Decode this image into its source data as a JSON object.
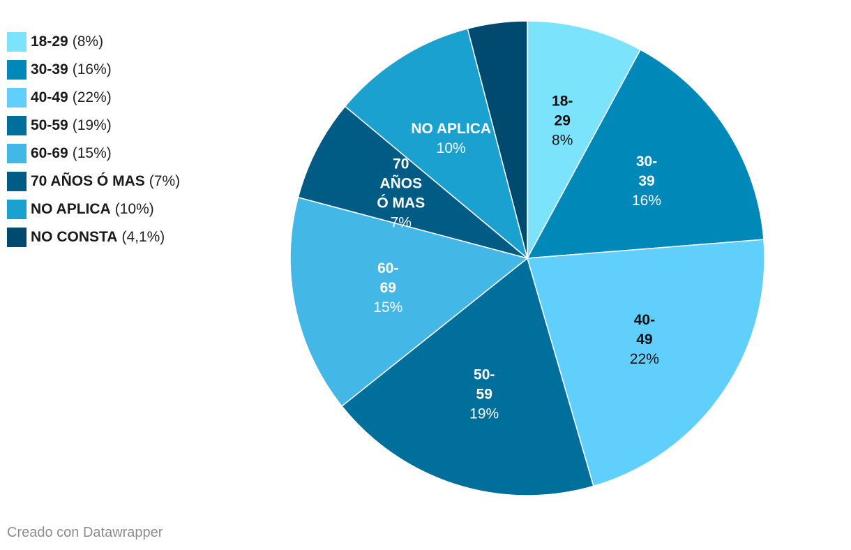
{
  "chart_data": {
    "type": "pie",
    "title": "",
    "categories": [
      "18-29",
      "30-39",
      "40-49",
      "50-59",
      "60-69",
      "70 AÑOS Ó MAS",
      "NO APLICA",
      "NO CONSTA"
    ],
    "values": [
      8,
      16,
      22,
      19,
      15,
      7,
      10,
      4.1
    ],
    "legend": [
      {
        "label": "18-29",
        "pct": "(8%)"
      },
      {
        "label": "30-39",
        "pct": "(16%)"
      },
      {
        "label": "40-49",
        "pct": "(22%)"
      },
      {
        "label": "50-59",
        "pct": "(19%)"
      },
      {
        "label": "60-69",
        "pct": "(15%)"
      },
      {
        "label": "70 AÑOS Ó MAS",
        "pct": "(7%)"
      },
      {
        "label": "NO APLICA",
        "pct": "(10%)"
      },
      {
        "label": "NO CONSTA",
        "pct": "(4,1%)"
      }
    ],
    "slice_labels": [
      {
        "lines": [
          "18-",
          "29"
        ],
        "pct": "8%"
      },
      {
        "lines": [
          "30-",
          "39"
        ],
        "pct": "16%"
      },
      {
        "lines": [
          "40-",
          "49"
        ],
        "pct": "22%"
      },
      {
        "lines": [
          "50-",
          "59"
        ],
        "pct": "19%"
      },
      {
        "lines": [
          "60-",
          "69"
        ],
        "pct": "15%"
      },
      {
        "lines": [
          "70",
          "AÑOS",
          "Ó MAS"
        ],
        "pct": "7%"
      },
      {
        "lines": [
          "NO APLICA"
        ],
        "pct": "10%"
      },
      {
        "lines": [],
        "pct": ""
      }
    ],
    "colors": [
      "#7be4fc",
      "#0089b8",
      "#61cffc",
      "#006f9b",
      "#43b7e5",
      "#005b85",
      "#1aa1cf",
      "#004a70"
    ],
    "label_colors": [
      "#111111",
      "#ffffff",
      "#111111",
      "#ffffff",
      "#ffffff",
      "#ffffff",
      "#ffffff",
      "#ffffff"
    ],
    "legend_placement": "top-left"
  },
  "footer": {
    "credit": "Creado con Datawrapper"
  }
}
